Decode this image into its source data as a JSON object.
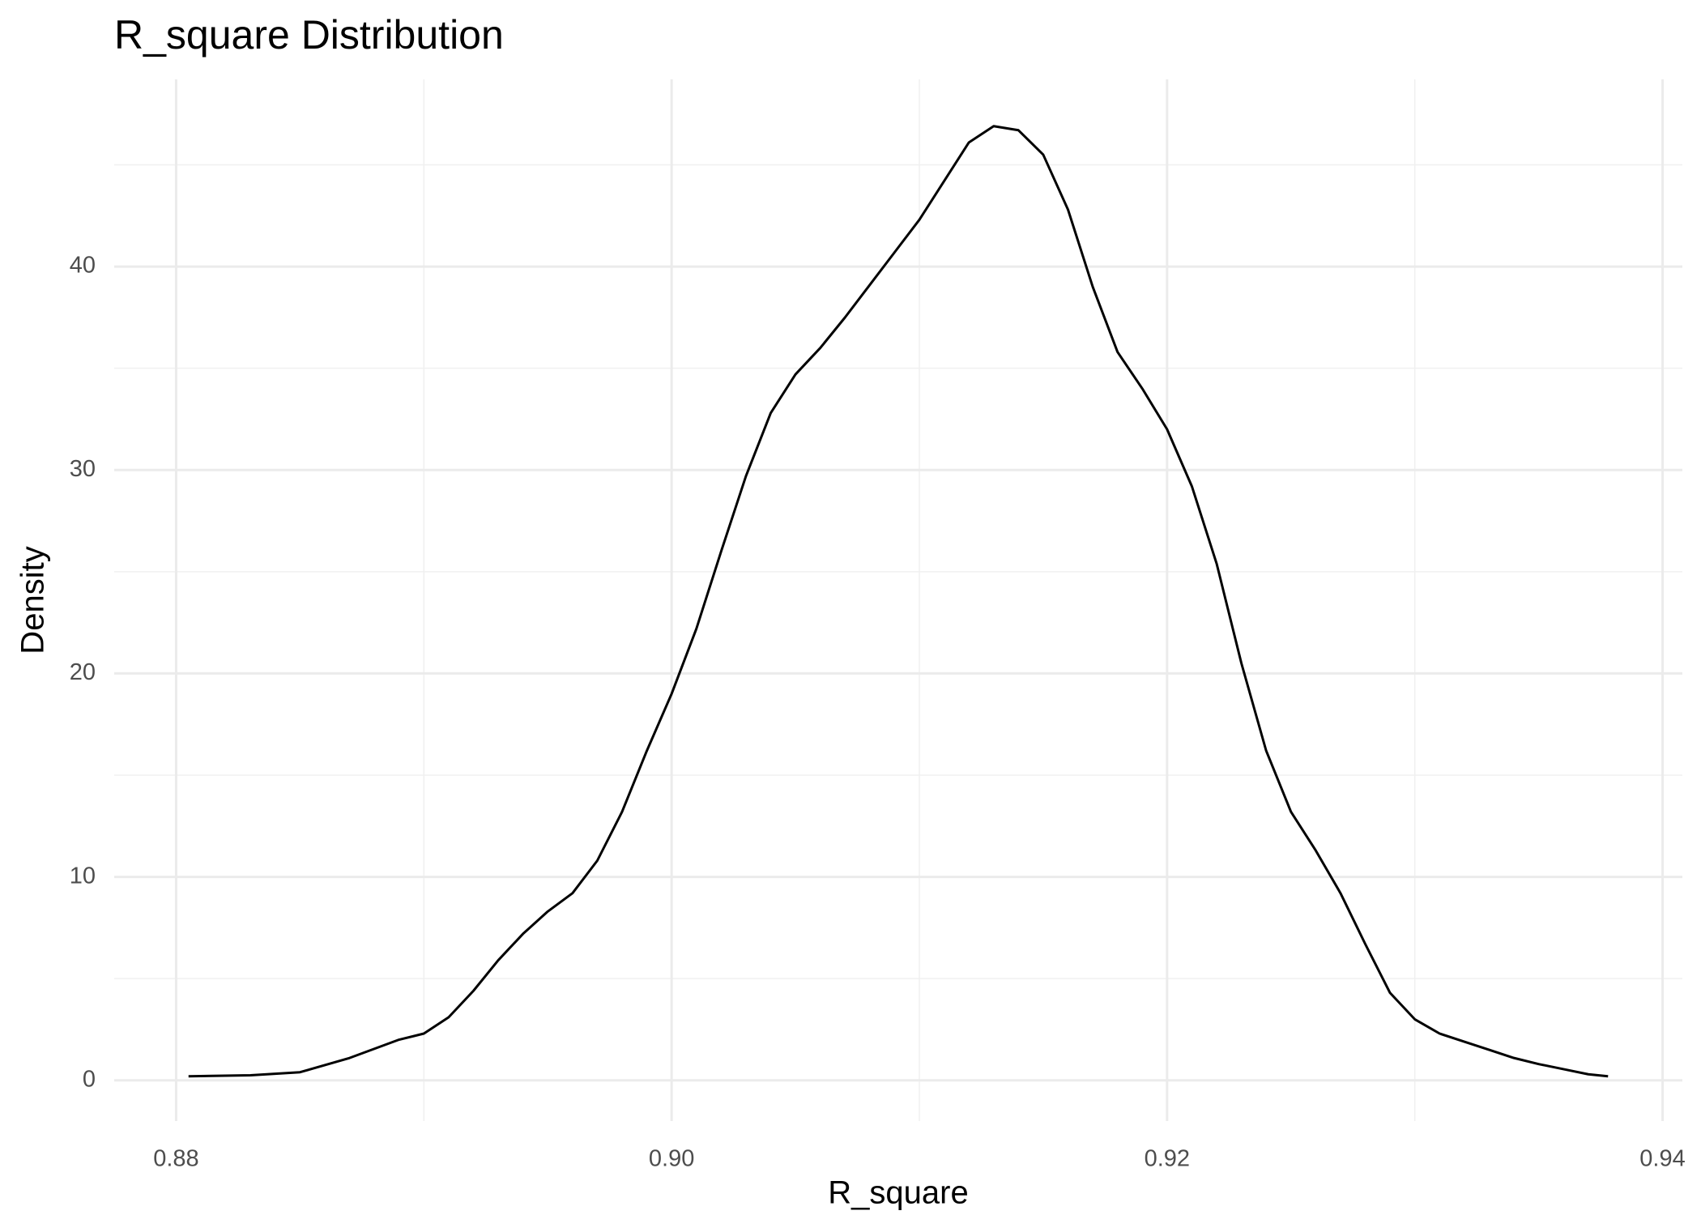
{
  "chart_data": {
    "type": "line",
    "title": "R_square Distribution",
    "x_label": "R_square",
    "y_label": "Density",
    "x": [
      0.8805,
      0.883,
      0.885,
      0.887,
      0.889,
      0.89,
      0.891,
      0.892,
      0.893,
      0.894,
      0.895,
      0.896,
      0.897,
      0.898,
      0.899,
      0.9,
      0.901,
      0.902,
      0.903,
      0.904,
      0.905,
      0.906,
      0.907,
      0.908,
      0.909,
      0.91,
      0.911,
      0.912,
      0.913,
      0.914,
      0.915,
      0.916,
      0.917,
      0.918,
      0.919,
      0.92,
      0.921,
      0.922,
      0.923,
      0.924,
      0.925,
      0.926,
      0.927,
      0.928,
      0.929,
      0.93,
      0.931,
      0.932,
      0.933,
      0.934,
      0.935,
      0.936,
      0.937,
      0.9378
    ],
    "series": [
      {
        "color": "#000000",
        "values": [
          0.2,
          0.25,
          0.4,
          1.1,
          2.0,
          2.3,
          3.1,
          4.4,
          5.9,
          7.2,
          8.3,
          9.2,
          10.8,
          13.2,
          16.2,
          19.0,
          22.2,
          26.0,
          29.7,
          32.8,
          34.7,
          36.0,
          37.5,
          39.1,
          40.7,
          42.3,
          44.2,
          46.1,
          46.9,
          46.7,
          45.5,
          42.8,
          39.0,
          35.8,
          34.0,
          32.0,
          29.2,
          25.4,
          20.5,
          16.2,
          13.2,
          11.3,
          9.2,
          6.7,
          4.3,
          3.0,
          2.3,
          1.9,
          1.5,
          1.1,
          0.8,
          0.55,
          0.3,
          0.2
        ]
      }
    ],
    "xlim": [
      0.8775,
      0.9408
    ],
    "ylim": [
      -2.0,
      49.2
    ],
    "xticks": [
      {
        "value": 0.88,
        "label": "0.88"
      },
      {
        "value": 0.9,
        "label": "0.90"
      },
      {
        "value": 0.92,
        "label": "0.92"
      },
      {
        "value": 0.94,
        "label": "0.94"
      }
    ],
    "yticks": [
      0,
      10,
      20,
      30,
      40
    ],
    "grid": true
  }
}
